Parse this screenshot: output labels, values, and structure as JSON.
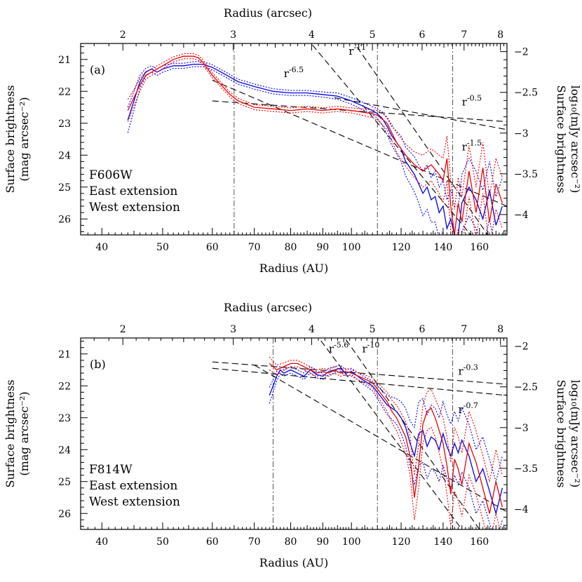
{
  "colors": {
    "east": "#0000ee",
    "west": "#ee0000",
    "axes": "#000000"
  },
  "chart_data": [
    {
      "type": "line",
      "panel_label": "(a)",
      "filter": "F606W",
      "x_top_label": "Radius (arcsec)",
      "x_bottom_label": "Radius (AU)",
      "ylabel_left": [
        "Surface brightness",
        "(mag arcsec⁻²)"
      ],
      "ylabel_right": [
        "Surface brightness",
        "log₁₀(mJy arcsec⁻²)"
      ],
      "x_scale": "log",
      "xlim": [
        37,
        177
      ],
      "ylim": [
        26.5,
        20.5
      ],
      "y2lim": [
        -4.25,
        -1.9
      ],
      "x_ticks": [
        40,
        50,
        60,
        70,
        80,
        90,
        100,
        120,
        140,
        160
      ],
      "x_tick_labels": [
        "40",
        "50",
        "60",
        "70",
        "80",
        "90",
        "100",
        "120",
        "140",
        "160"
      ],
      "top_ticks": [
        2,
        3,
        4,
        5,
        6,
        7,
        8
      ],
      "top_tick_labels": [
        "2",
        "3",
        "4",
        "5",
        "6",
        "7",
        "8"
      ],
      "au_per_arcsec": 21.6,
      "y_ticks": [
        21,
        22,
        23,
        24,
        25,
        26
      ],
      "y_tick_labels": [
        "21",
        "22",
        "23",
        "24",
        "25",
        "26"
      ],
      "y2_ticks": [
        -2,
        -2.5,
        -3,
        -3.5,
        -4
      ],
      "y2_tick_labels": [
        "−2",
        "−2.5",
        "−3",
        "−3.5",
        "−4"
      ],
      "vertical_lines": [
        65,
        110,
        145
      ],
      "legend": [
        {
          "text": "F606W",
          "color": "#000000"
        },
        {
          "text": "East extension",
          "color": "#0000ee"
        },
        {
          "text": "West extension",
          "color": "#ee0000"
        }
      ],
      "power_laws": [
        {
          "label": "r",
          "exponent": "-6.5",
          "x0": 60,
          "y0": 21.65,
          "x1": 177,
          "y1": 25.6,
          "lx": 78,
          "ly": 21.55
        },
        {
          "label": "r",
          "exponent": "-11",
          "x0": 94,
          "y0": 19.6,
          "x1": 165,
          "y1": 26.5,
          "lx": 99,
          "ly": 20.85
        },
        {
          "label": "r",
          "exponent": "-0.5",
          "x0": 60,
          "y0": 22.3,
          "x1": 177,
          "y1": 22.95,
          "lx": 150,
          "ly": 22.45
        },
        {
          "label": "r",
          "exponent": "-1.5",
          "x0": 94,
          "y0": 22.2,
          "x1": 177,
          "y1": 23.2,
          "lx": 150,
          "ly": 23.85
        },
        {
          "label": "",
          "exponent": "",
          "x0": 79,
          "y0": 19.6,
          "x1": 155,
          "y1": 26.5,
          "lx": 0,
          "ly": 0
        }
      ],
      "series": [
        {
          "name": "East extension",
          "color": "#0000ee",
          "x": [
            44,
            45,
            46,
            47,
            48,
            49,
            50,
            52,
            54,
            56,
            58,
            60,
            62,
            64,
            66,
            70,
            75,
            80,
            85,
            90,
            95,
            100,
            104,
            108,
            110,
            112,
            114,
            116,
            118,
            120,
            122,
            124,
            126,
            128,
            130,
            132,
            134,
            136,
            138,
            140,
            142,
            144,
            146,
            148,
            150,
            154,
            158,
            162,
            166,
            170,
            174
          ],
          "y": [
            22.9,
            22.3,
            21.7,
            21.4,
            21.3,
            21.4,
            21.3,
            21.2,
            21.2,
            21.15,
            21.15,
            21.25,
            21.4,
            21.55,
            21.7,
            21.85,
            22.0,
            22.05,
            22.05,
            22.1,
            22.15,
            22.3,
            22.45,
            22.6,
            22.7,
            22.85,
            23.1,
            23.4,
            23.6,
            23.8,
            24.2,
            24.4,
            24.6,
            24.9,
            25.2,
            25.0,
            25.4,
            25.3,
            25.8,
            25.6,
            26.3,
            26.0,
            26.5,
            26.5,
            25.5,
            25.0,
            25.4,
            26.0,
            25.1,
            26.2,
            25.6
          ],
          "err": [
            0.4,
            0.3,
            0.2,
            0.12,
            0.1,
            0.1,
            0.1,
            0.08,
            0.08,
            0.08,
            0.08,
            0.08,
            0.08,
            0.08,
            0.08,
            0.08,
            0.08,
            0.08,
            0.08,
            0.08,
            0.1,
            0.1,
            0.12,
            0.12,
            0.15,
            0.2,
            0.25,
            0.3,
            0.35,
            0.4,
            0.45,
            0.5,
            0.55,
            0.6,
            0.7,
            0.7,
            0.7,
            0.8,
            0.8,
            0.8,
            0.9,
            0.9,
            0.9,
            0.9,
            0.9,
            0.9,
            0.9,
            0.9,
            0.9,
            0.9,
            0.9
          ]
        },
        {
          "name": "West extension",
          "color": "#ee0000",
          "x": [
            44,
            45,
            46,
            47,
            48,
            50,
            52,
            54,
            55,
            56,
            57,
            58,
            59,
            60,
            62,
            64,
            66,
            70,
            75,
            80,
            85,
            90,
            95,
            100,
            104,
            108,
            110,
            114,
            118,
            122,
            126,
            130,
            134,
            138,
            140,
            142,
            144,
            146,
            148,
            150,
            154,
            158,
            162,
            166,
            170,
            174
          ],
          "y": [
            22.6,
            22.2,
            21.8,
            21.5,
            21.4,
            21.2,
            21.0,
            20.9,
            20.9,
            20.9,
            20.95,
            21.1,
            21.3,
            21.5,
            21.8,
            22.1,
            22.3,
            22.5,
            22.55,
            22.6,
            22.55,
            22.6,
            22.55,
            22.6,
            22.65,
            22.7,
            22.75,
            23.0,
            23.6,
            24.0,
            24.3,
            24.5,
            24.3,
            24.6,
            24.8,
            24.1,
            25.6,
            26.5,
            25.5,
            26.1,
            24.5,
            25.8,
            24.4,
            26.1,
            24.9,
            25.5
          ],
          "err": [
            0.35,
            0.25,
            0.2,
            0.12,
            0.1,
            0.1,
            0.08,
            0.08,
            0.08,
            0.08,
            0.08,
            0.08,
            0.08,
            0.08,
            0.08,
            0.08,
            0.08,
            0.08,
            0.08,
            0.08,
            0.08,
            0.08,
            0.08,
            0.08,
            0.1,
            0.12,
            0.15,
            0.2,
            0.3,
            0.35,
            0.4,
            0.5,
            0.5,
            0.6,
            0.7,
            0.7,
            0.8,
            0.8,
            0.8,
            0.8,
            0.8,
            0.8,
            0.8,
            0.8,
            0.8,
            0.8
          ]
        }
      ]
    },
    {
      "type": "line",
      "panel_label": "(b)",
      "filter": "F814W",
      "x_top_label": "Radius (arcsec)",
      "x_bottom_label": "Radius (AU)",
      "ylabel_left": [
        "Surface brightness",
        "(mag arcsec⁻²)"
      ],
      "ylabel_right": [
        "Surface brightness",
        "log₁₀(mJy arcsec⁻²)"
      ],
      "x_scale": "log",
      "xlim": [
        37,
        177
      ],
      "ylim": [
        26.5,
        20.5
      ],
      "y2lim": [
        -4.25,
        -1.9
      ],
      "x_ticks": [
        40,
        50,
        60,
        70,
        80,
        90,
        100,
        120,
        140,
        160
      ],
      "x_tick_labels": [
        "40",
        "50",
        "60",
        "70",
        "80",
        "90",
        "100",
        "120",
        "140",
        "160"
      ],
      "top_ticks": [
        2,
        3,
        4,
        5,
        6,
        7,
        8
      ],
      "top_tick_labels": [
        "2",
        "3",
        "4",
        "5",
        "6",
        "7",
        "8"
      ],
      "au_per_arcsec": 21.6,
      "y_ticks": [
        21,
        22,
        23,
        24,
        25,
        26
      ],
      "y_tick_labels": [
        "21",
        "22",
        "23",
        "24",
        "25",
        "26"
      ],
      "y2_ticks": [
        -2,
        -2.5,
        -3,
        -3.5,
        -4
      ],
      "y2_tick_labels": [
        "−2",
        "−2.5",
        "−3",
        "−3.5",
        "−4"
      ],
      "vertical_lines": [
        75,
        110,
        145
      ],
      "legend": [
        {
          "text": "F814W",
          "color": "#000000"
        },
        {
          "text": "East extension",
          "color": "#0000ee"
        },
        {
          "text": "West extension",
          "color": "#ee0000"
        }
      ],
      "power_laws": [
        {
          "label": "r",
          "exponent": "-5.6",
          "x0": 70,
          "y0": 21.35,
          "x1": 177,
          "y1": 25.95,
          "lx": 92,
          "ly": 20.95
        },
        {
          "label": "r",
          "exponent": "-10",
          "x0": 96,
          "y0": 20.3,
          "x1": 160,
          "y1": 26.5,
          "lx": 104,
          "ly": 20.95
        },
        {
          "label": "r",
          "exponent": "-0.3",
          "x0": 60,
          "y0": 21.25,
          "x1": 177,
          "y1": 21.95,
          "lx": 148,
          "ly": 21.65
        },
        {
          "label": "r",
          "exponent": "-0.7",
          "x0": 60,
          "y0": 21.45,
          "x1": 177,
          "y1": 22.3,
          "lx": 148,
          "ly": 22.85
        },
        {
          "label": "",
          "exponent": "",
          "x0": 82,
          "y0": 19.6,
          "x1": 150,
          "y1": 26.5,
          "lx": 0,
          "ly": 0
        }
      ],
      "series": [
        {
          "name": "East extension",
          "color": "#0000ee",
          "x": [
            74,
            75,
            76,
            77,
            78,
            80,
            82,
            84,
            86,
            88,
            90,
            92,
            94,
            96,
            98,
            100,
            104,
            108,
            110,
            112,
            114,
            116,
            118,
            120,
            122,
            124,
            126,
            128,
            130,
            132,
            134,
            136,
            138,
            140,
            142,
            144,
            146,
            148,
            150,
            154,
            158,
            162,
            166,
            170,
            174
          ],
          "y": [
            22.3,
            22.0,
            21.7,
            21.5,
            21.6,
            21.5,
            21.6,
            21.7,
            21.5,
            21.65,
            21.7,
            21.55,
            21.5,
            21.45,
            21.6,
            21.55,
            21.8,
            22.0,
            22.2,
            22.4,
            22.6,
            22.7,
            22.8,
            23.0,
            23.3,
            23.8,
            24.2,
            23.5,
            23.4,
            23.9,
            23.6,
            23.7,
            24.0,
            23.5,
            23.9,
            24.2,
            23.8,
            24.1,
            23.7,
            24.2,
            25.0,
            24.6,
            25.3,
            26.0,
            25.2
          ],
          "err": [
            0.25,
            0.2,
            0.15,
            0.12,
            0.1,
            0.1,
            0.1,
            0.1,
            0.1,
            0.1,
            0.1,
            0.1,
            0.1,
            0.1,
            0.1,
            0.1,
            0.12,
            0.15,
            0.2,
            0.25,
            0.3,
            0.35,
            0.4,
            0.5,
            0.6,
            0.7,
            0.9,
            1.0,
            1.0,
            1.0,
            1.0,
            1.0,
            1.0,
            1.0,
            1.0,
            1.0,
            1.0,
            1.0,
            1.0,
            1.0,
            1.0,
            1.0,
            1.0,
            1.0,
            1.0
          ]
        },
        {
          "name": "West extension",
          "color": "#ee0000",
          "x": [
            74,
            76,
            78,
            80,
            82,
            84,
            86,
            88,
            90,
            92,
            94,
            96,
            98,
            100,
            104,
            108,
            110,
            112,
            114,
            116,
            118,
            120,
            122,
            124,
            126,
            128,
            130,
            132,
            134,
            136,
            138,
            140,
            142,
            144,
            146,
            148,
            150,
            154,
            158,
            162,
            166,
            170,
            174
          ],
          "y": [
            21.3,
            21.5,
            21.4,
            21.3,
            21.3,
            21.4,
            21.5,
            21.6,
            21.55,
            21.6,
            21.5,
            21.6,
            21.55,
            21.6,
            21.75,
            21.9,
            22.1,
            22.3,
            22.5,
            22.8,
            23.0,
            23.3,
            23.6,
            24.2,
            25.5,
            24.5,
            23.2,
            22.8,
            22.7,
            23.0,
            23.4,
            23.8,
            24.5,
            25.4,
            24.3,
            24.6,
            25.1,
            23.8,
            24.4,
            25.2,
            26.0,
            25.0,
            25.8
          ],
          "err": [
            0.2,
            0.15,
            0.12,
            0.1,
            0.1,
            0.1,
            0.1,
            0.1,
            0.1,
            0.1,
            0.1,
            0.1,
            0.1,
            0.1,
            0.12,
            0.15,
            0.2,
            0.25,
            0.3,
            0.35,
            0.4,
            0.45,
            0.5,
            0.6,
            0.7,
            0.7,
            0.6,
            0.6,
            0.6,
            0.6,
            0.7,
            0.8,
            0.9,
            1.0,
            1.0,
            1.0,
            1.0,
            1.0,
            1.0,
            1.0,
            1.0,
            1.0,
            1.0
          ]
        }
      ]
    }
  ]
}
